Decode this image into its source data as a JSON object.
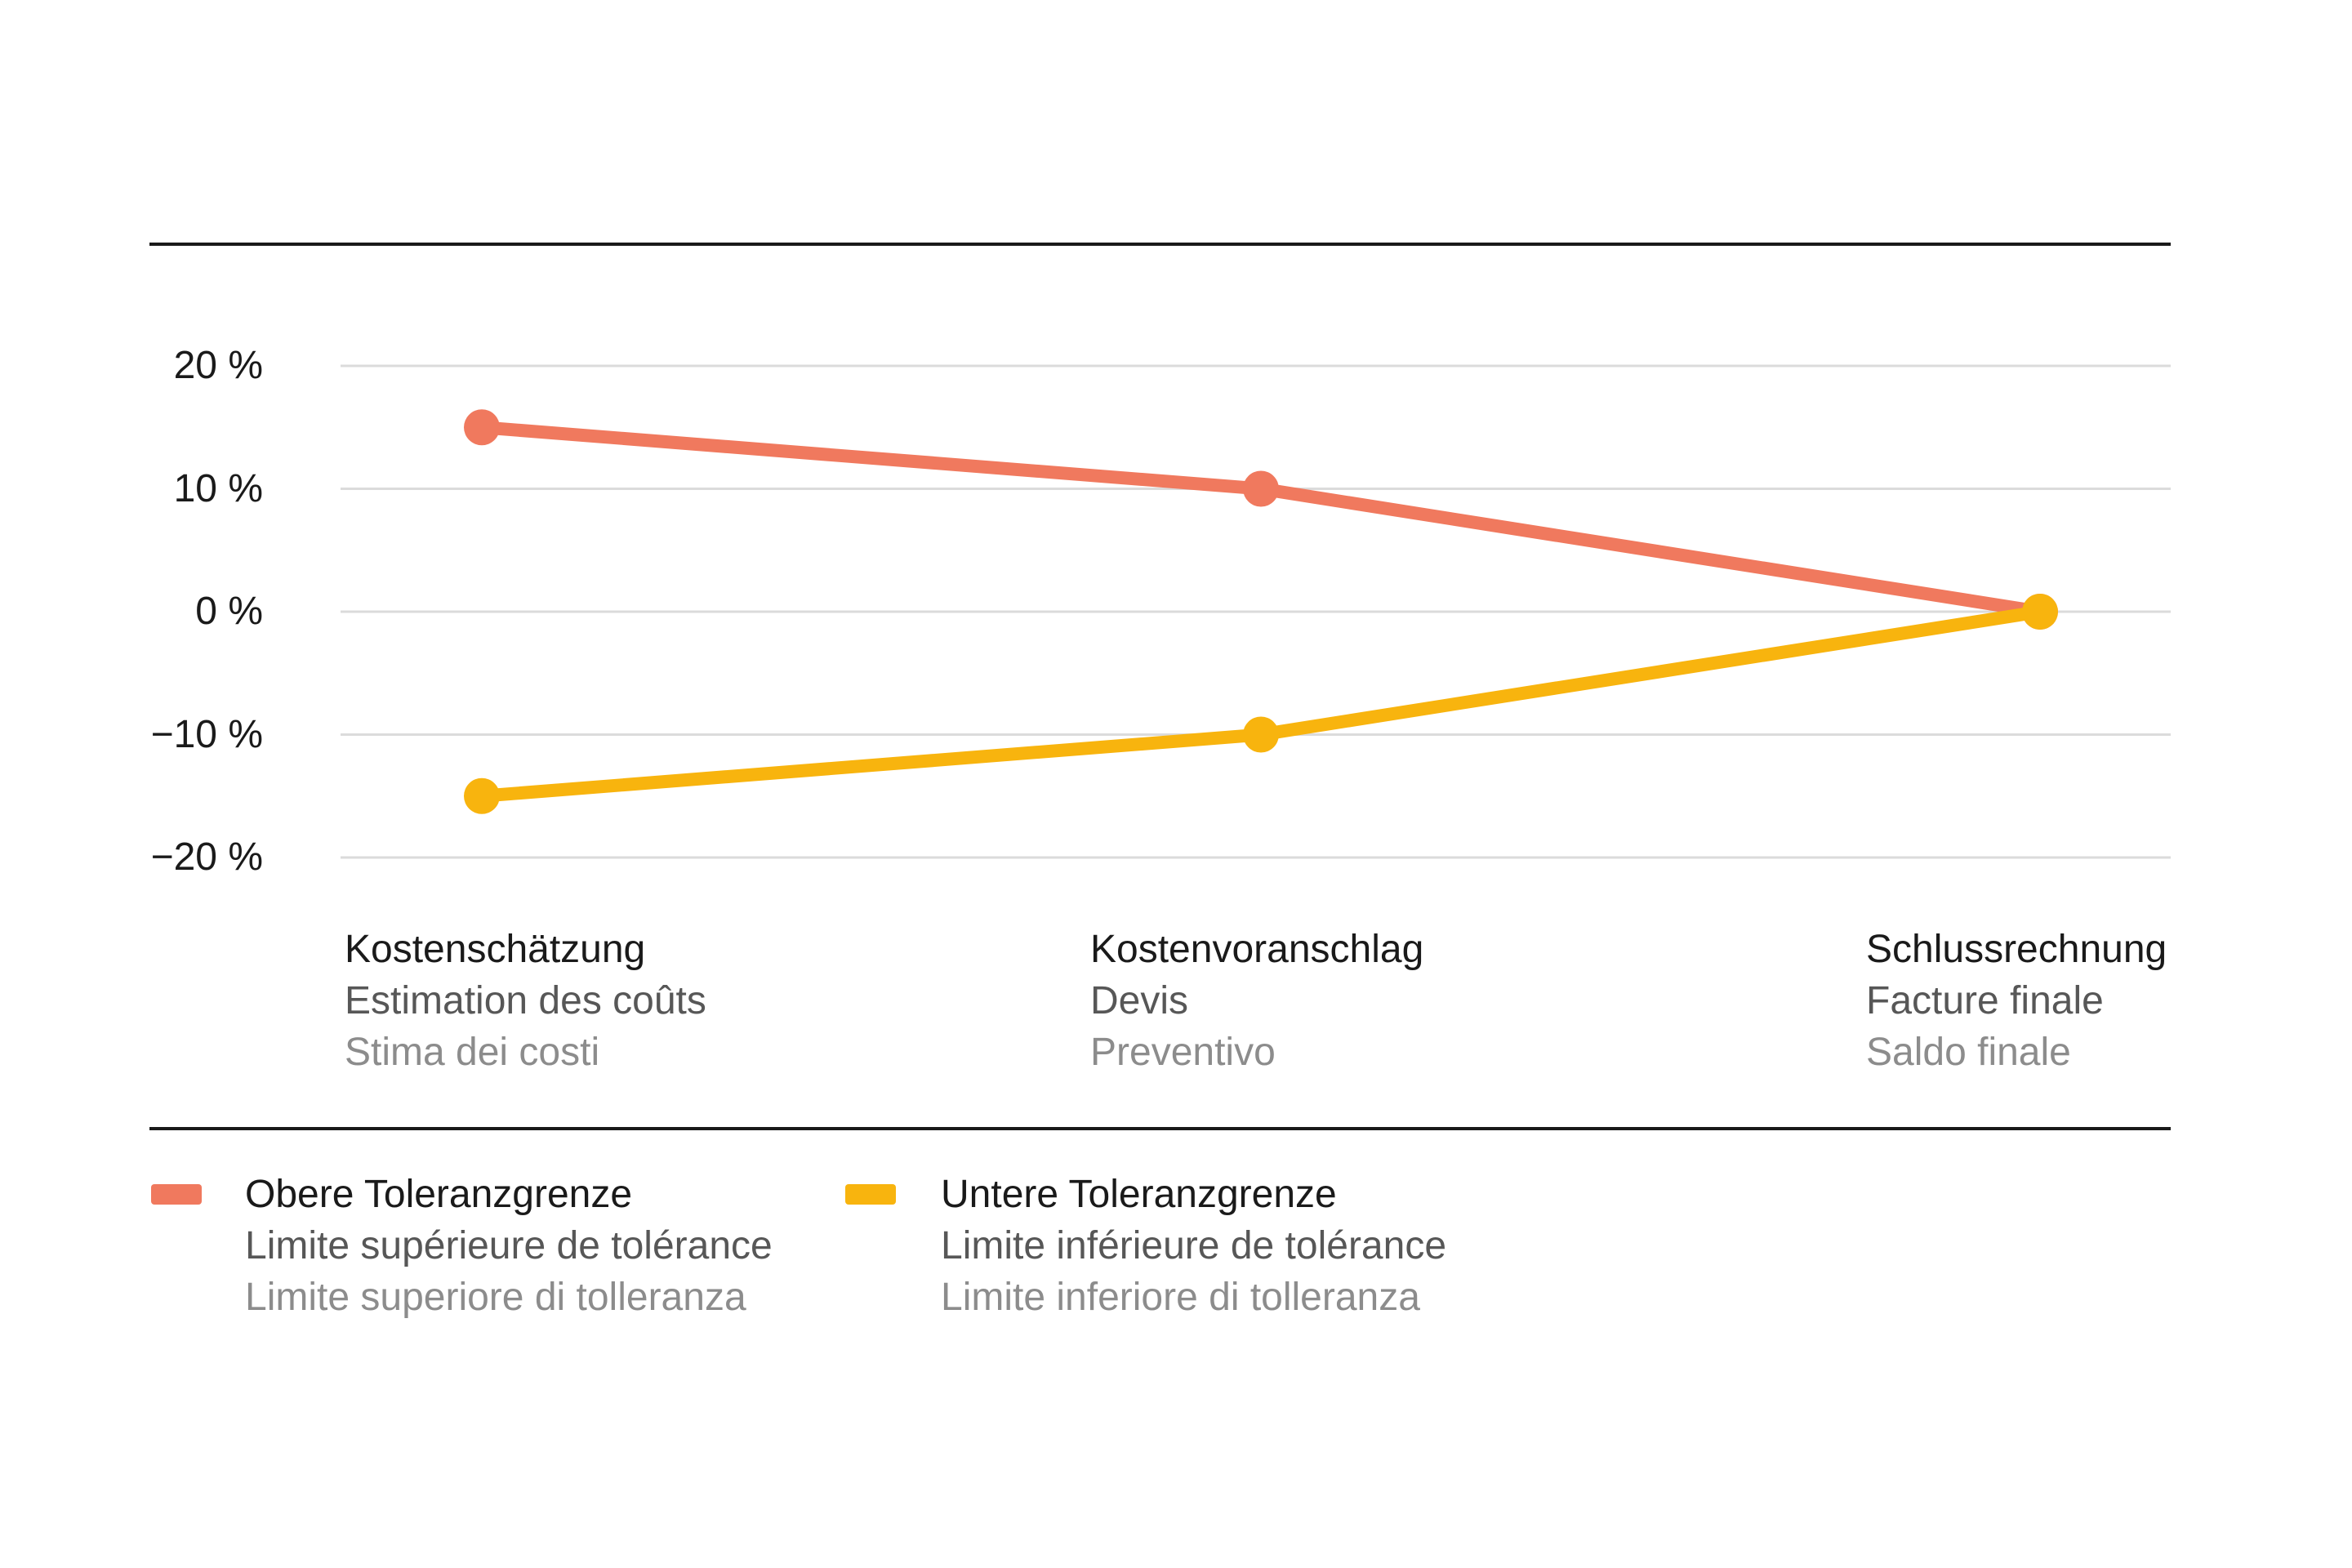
{
  "chart_data": {
    "type": "line",
    "grid": true,
    "legend_position": "bottom",
    "ylabel": "",
    "xlabel": "",
    "ylim": [
      -20,
      20
    ],
    "ytick_step": 10,
    "yticks": [
      {
        "value": 20,
        "label": "20 %"
      },
      {
        "value": 10,
        "label": "10 %"
      },
      {
        "value": 0,
        "label": "0 %"
      },
      {
        "value": -10,
        "label": "−10 %"
      },
      {
        "value": -20,
        "label": "−20 %"
      }
    ],
    "categories": [
      {
        "de": "Kostenschätzung",
        "fr": "Estimation des coûts",
        "it": "Stima dei costi"
      },
      {
        "de": "Kostenvoranschlag",
        "fr": "Devis",
        "it": "Preventivo"
      },
      {
        "de": "Schlussrechnung",
        "fr": "Facture finale",
        "it": "Saldo finale"
      }
    ],
    "series": [
      {
        "name_de": "Obere Toleranzgrenze",
        "name_fr": "Limite supérieure de tolérance",
        "name_it": "Limite superiore di tolleranza",
        "color": "#F0795E",
        "values": [
          15,
          10,
          0
        ]
      },
      {
        "name_de": "Untere Toleranzgrenze",
        "name_fr": "Limite inférieure de tolérance",
        "name_it": "Limite inferiore di tolleranza",
        "color": "#F8B40E",
        "values": [
          -15,
          -10,
          0
        ]
      }
    ]
  },
  "colors": {
    "background": "#FFFFFF",
    "divider": "#1A1A1A",
    "gridline": "#DBDBDB",
    "text_primary": "#1A1A1A",
    "text_secondary": "#575757",
    "text_tertiary": "#8C8C8C"
  }
}
